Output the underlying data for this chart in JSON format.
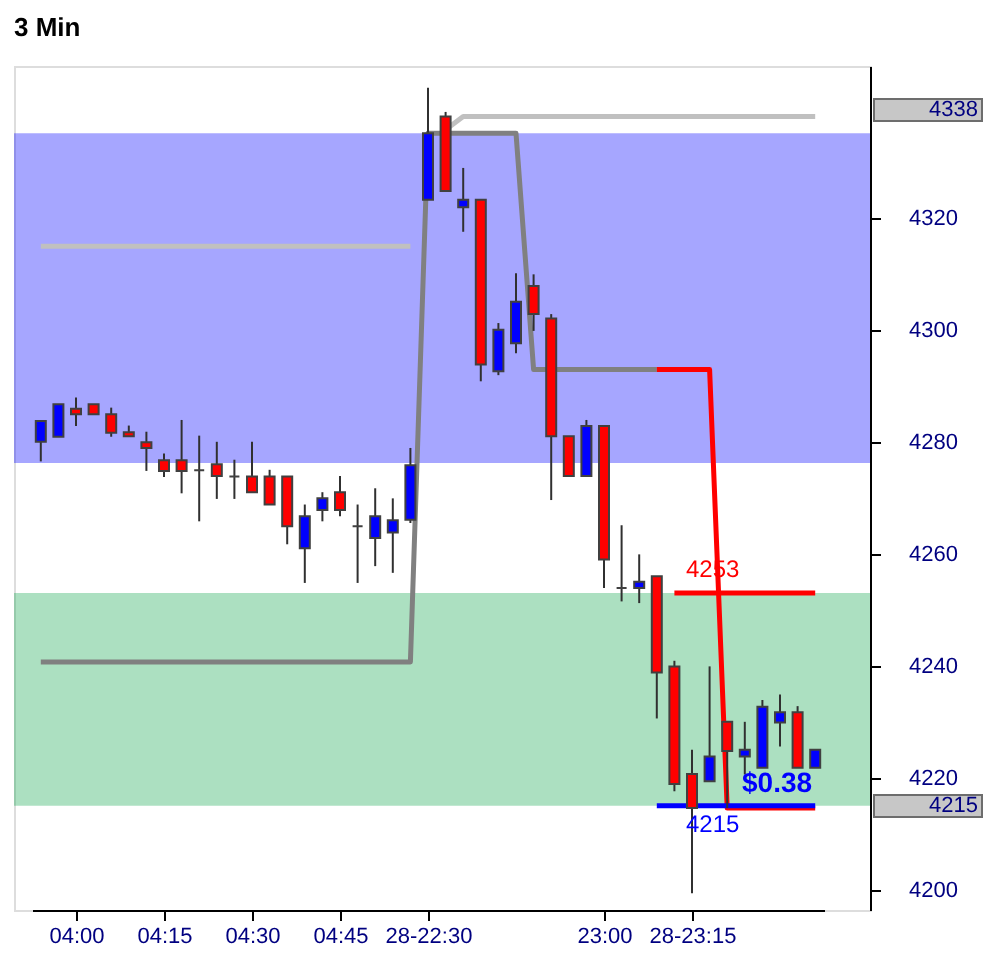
{
  "chart_data": {
    "type": "candlestick",
    "title": "3 Min",
    "categories": [
      null,
      null,
      "04:00",
      null,
      null,
      null,
      null,
      "04:15",
      null,
      null,
      null,
      null,
      "04:30",
      null,
      null,
      null,
      null,
      "04:45",
      null,
      null,
      null,
      null,
      "28-22:30",
      null,
      null,
      null,
      null,
      null,
      null,
      null,
      null,
      null,
      "23:00",
      null,
      null,
      null,
      null,
      "28-23:15",
      null,
      null,
      null,
      null,
      null,
      null,
      null
    ],
    "ohlc": [
      [
        4280.0,
        4283.7,
        4276.5,
        4283.7
      ],
      [
        4280.9,
        4286.7,
        4280.9,
        4286.7
      ],
      [
        4285.9,
        4287.9,
        4282.8,
        4284.9
      ],
      [
        4286.7,
        4286.7,
        4284.9,
        4284.9
      ],
      [
        4284.9,
        4286.1,
        4280.9,
        4281.6
      ],
      [
        4281.7,
        4282.9,
        4280.9,
        4281.0
      ],
      [
        4279.9,
        4281.8,
        4274.8,
        4278.9
      ],
      [
        4276.7,
        4277.9,
        4273.7,
        4274.8
      ],
      [
        4276.7,
        4283.9,
        4270.8,
        4274.8
      ],
      [
        4274.9,
        4281.1,
        4265.8,
        4274.9
      ],
      [
        4276.0,
        4280.0,
        4269.8,
        4273.9
      ],
      [
        4273.8,
        4276.8,
        4269.8,
        4273.8
      ],
      [
        4273.8,
        4280.0,
        4271.0,
        4271.0
      ],
      [
        4273.8,
        4275.0,
        4268.8,
        4268.8
      ],
      [
        4273.8,
        4273.8,
        4261.7,
        4264.9
      ],
      [
        4261.0,
        4268.8,
        4254.8,
        4266.7
      ],
      [
        4267.8,
        4271.0,
        4265.8,
        4269.9
      ],
      [
        4271.0,
        4273.9,
        4266.7,
        4267.8
      ],
      [
        4264.9,
        4268.8,
        4254.8,
        4264.9
      ],
      [
        4262.8,
        4271.7,
        4257.8,
        4266.7
      ],
      [
        4263.8,
        4269.9,
        4256.6,
        4266.0
      ],
      [
        4266.1,
        4278.9,
        4265.5,
        4275.8
      ],
      [
        4323.2,
        4343.2,
        4323.2,
        4335.1
      ],
      [
        4338.1,
        4338.9,
        4324.8,
        4324.8
      ],
      [
        4321.9,
        4328.9,
        4317.5,
        4323.2
      ],
      [
        4323.2,
        4323.2,
        4290.8,
        4293.8
      ],
      [
        4292.6,
        4301.2,
        4291.9,
        4300.0
      ],
      [
        4297.6,
        4310.1,
        4295.8,
        4305.0
      ],
      [
        4307.8,
        4309.9,
        4299.8,
        4302.8
      ],
      [
        4302.0,
        4302.8,
        4269.6,
        4281.0
      ],
      [
        4281.0,
        4281.0,
        4273.9,
        4273.9
      ],
      [
        4273.9,
        4283.9,
        4273.9,
        4282.8
      ],
      [
        4282.8,
        4282.8,
        4253.9,
        4259.0
      ],
      [
        4253.9,
        4265.1,
        4251.5,
        4253.9
      ],
      [
        4253.9,
        4259.9,
        4251.2,
        4255.0
      ],
      [
        4256.0,
        4256.0,
        4230.6,
        4238.8
      ],
      [
        4239.9,
        4240.9,
        4217.6,
        4218.9
      ],
      [
        4220.7,
        4225.0,
        4199.4,
        4214.6
      ],
      [
        4219.4,
        4239.9,
        4219.4,
        4223.8
      ],
      [
        4230.0,
        4230.0,
        4214.6,
        4224.8
      ],
      [
        4223.8,
        4230.0,
        4220.6,
        4225.0
      ],
      [
        4221.8,
        4233.9,
        4221.8,
        4232.7
      ],
      [
        4229.9,
        4234.9,
        4225.6,
        4231.7
      ],
      [
        4231.7,
        4232.8,
        4221.8,
        4221.8
      ],
      [
        4221.8,
        4225.0,
        4221.8,
        4225.0
      ]
    ],
    "colors": [
      "#0000ff",
      "#0000ff",
      "#ff0000",
      "#ff0000",
      "#ff0000",
      "#ff0000",
      "#ff0000",
      "#ff0000",
      "#ff0000",
      "#404040",
      "#ff0000",
      "#404040",
      "#ff0000",
      "#ff0000",
      "#ff0000",
      "#0000ff",
      "#0000ff",
      "#ff0000",
      "#404040",
      "#0000ff",
      "#0000ff",
      "#0000ff",
      "#0000ff",
      "#ff0000",
      "#0000ff",
      "#ff0000",
      "#0000ff",
      "#0000ff",
      "#ff0000",
      "#ff0000",
      "#ff0000",
      "#0000ff",
      "#ff0000",
      "#404040",
      "#0000ff",
      "#ff0000",
      "#ff0000",
      "#ff0000",
      "#0000ff",
      "#ff0000",
      "#0000ff",
      "#0000ff",
      "#0000ff",
      "#ff0000",
      "#0000ff"
    ],
    "series": [
      {
        "type": "line",
        "color": "#c0c0c0",
        "values": [
          4314.9,
          4314.9,
          4314.9,
          4314.9,
          4314.9,
          4314.9,
          4314.9,
          4314.9,
          4314.9,
          4314.9,
          4314.9,
          4314.9,
          4314.9,
          4314.9,
          4314.9,
          4314.9,
          4314.9,
          4314.9,
          4314.9,
          4314.9,
          4314.9,
          4314.9,
          null,
          4335.7,
          4338.1,
          4338.1,
          4338.1,
          4338.1,
          4338.1,
          4338.1,
          4338.1,
          4338.1,
          4338.1,
          4338.1,
          4338.1,
          4338.1,
          4338.1,
          4338.1,
          4338.1,
          4338.1,
          4338.1,
          4338.1,
          4338.1,
          4338.1,
          4338.1
        ]
      },
      {
        "type": "line",
        "color": "#808080",
        "values": [
          4240.7,
          4240.7,
          4240.7,
          4240.7,
          4240.7,
          4240.7,
          4240.7,
          4240.7,
          4240.7,
          4240.7,
          4240.7,
          4240.7,
          4240.7,
          4240.7,
          4240.7,
          4240.7,
          4240.7,
          4240.7,
          4240.7,
          4240.7,
          4240.7,
          4240.7,
          4335.1,
          4335.1,
          4335.1,
          4335.1,
          4335.1,
          4335.1,
          4292.9,
          4292.9,
          4292.9,
          4292.9,
          4292.9,
          4292.9,
          4292.9,
          4292.9,
          null,
          null,
          null,
          null,
          null,
          null,
          null,
          null,
          null
        ]
      },
      {
        "type": "line",
        "color": "#ff0000",
        "values": [
          null,
          null,
          null,
          null,
          null,
          null,
          null,
          null,
          null,
          null,
          null,
          null,
          null,
          null,
          null,
          null,
          null,
          null,
          null,
          null,
          null,
          null,
          null,
          null,
          null,
          null,
          null,
          null,
          null,
          null,
          null,
          null,
          null,
          null,
          null,
          4292.9,
          4292.9,
          4292.9,
          4292.9,
          4214.6,
          4214.6,
          4214.6,
          4214.6,
          4214.6,
          4214.6
        ]
      },
      {
        "type": "line",
        "color": "#ff0000",
        "values": [
          null,
          null,
          null,
          null,
          null,
          null,
          null,
          null,
          null,
          null,
          null,
          null,
          null,
          null,
          null,
          null,
          null,
          null,
          null,
          null,
          null,
          null,
          null,
          null,
          null,
          null,
          null,
          null,
          null,
          null,
          null,
          null,
          null,
          null,
          null,
          null,
          4253,
          4253,
          4253,
          4253,
          4253,
          4253,
          4253,
          4253,
          4253
        ]
      },
      {
        "type": "line",
        "color": "#0000ff",
        "values": [
          null,
          null,
          null,
          null,
          null,
          null,
          null,
          null,
          null,
          null,
          null,
          null,
          null,
          null,
          null,
          null,
          null,
          null,
          null,
          null,
          null,
          null,
          null,
          null,
          null,
          null,
          null,
          null,
          null,
          null,
          null,
          null,
          null,
          null,
          null,
          4215,
          4215,
          4215,
          4215,
          4215,
          4215,
          4215,
          4215,
          4215,
          4215
        ]
      }
    ],
    "bands": [
      {
        "axis": "y",
        "from": 4276.2,
        "to": 4335.1,
        "color": "#0000ff"
      },
      {
        "axis": "y",
        "from": 4215,
        "to": 4253,
        "color": "#11a74d"
      }
    ],
    "annotations": [
      {
        "text": "4253",
        "x": "28-23:15",
        "y": 4253
      },
      {
        "text": "4215",
        "x": "28-23:15",
        "y": 4215
      },
      {
        "text": "$0.38",
        "y": 4215
      },
      "4338",
      "4215"
    ],
    "ylim": [
      4196.4,
      4347.1
    ],
    "yticks": [
      4200,
      4220,
      4240,
      4260,
      4280,
      4300,
      4320
    ],
    "grid": false
  }
}
